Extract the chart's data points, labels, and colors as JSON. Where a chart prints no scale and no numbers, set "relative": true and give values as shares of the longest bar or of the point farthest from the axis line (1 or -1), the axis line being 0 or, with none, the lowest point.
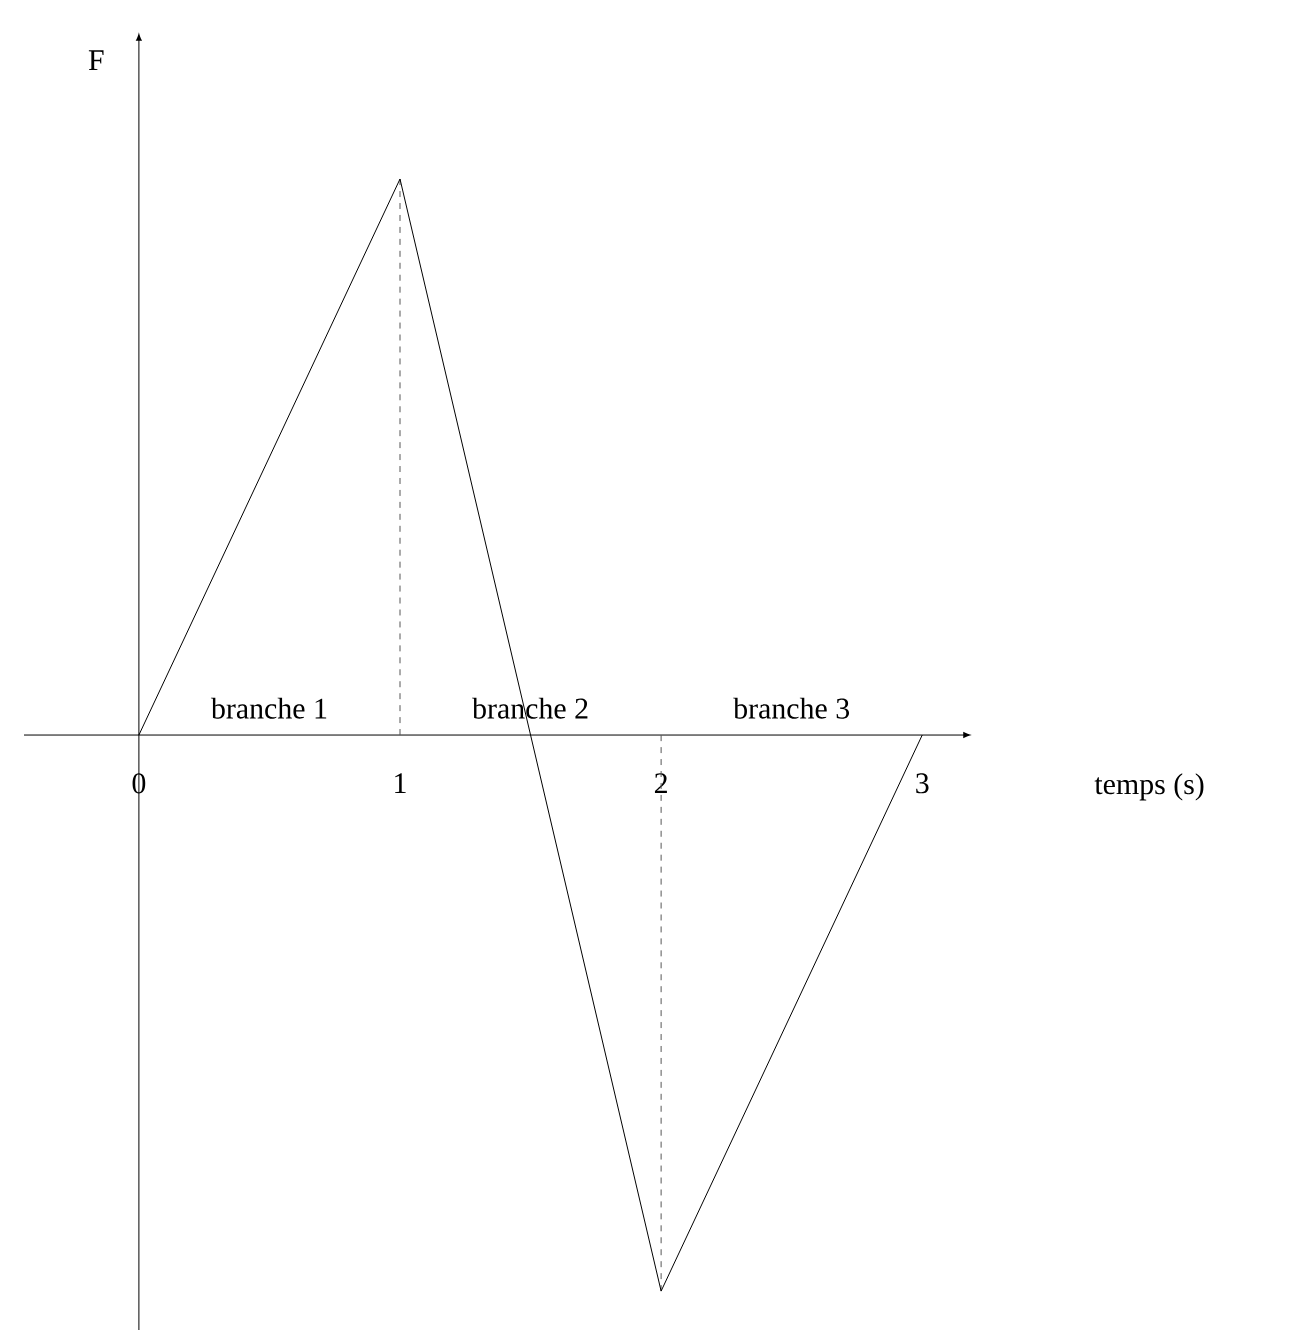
{
  "chart_data": {
    "type": "line",
    "relative": true,
    "x": [
      0,
      1,
      2,
      3
    ],
    "values": [
      0,
      1,
      -1,
      0
    ],
    "color": "#000000",
    "xlim": [
      -0.44,
      3.16
    ],
    "xticks": [
      0,
      1,
      2,
      3
    ],
    "xlabel": "temps (s)",
    "ylabel": "F",
    "annotations": [
      "branche 1",
      "branche 2",
      "branche 3"
    ],
    "ref_lines": [
      {
        "axis": "x",
        "value": 1,
        "line_style": "dashed",
        "color": "#555555"
      },
      {
        "axis": "x",
        "value": 2,
        "line_style": "dashed",
        "color": "#555555"
      }
    ]
  }
}
